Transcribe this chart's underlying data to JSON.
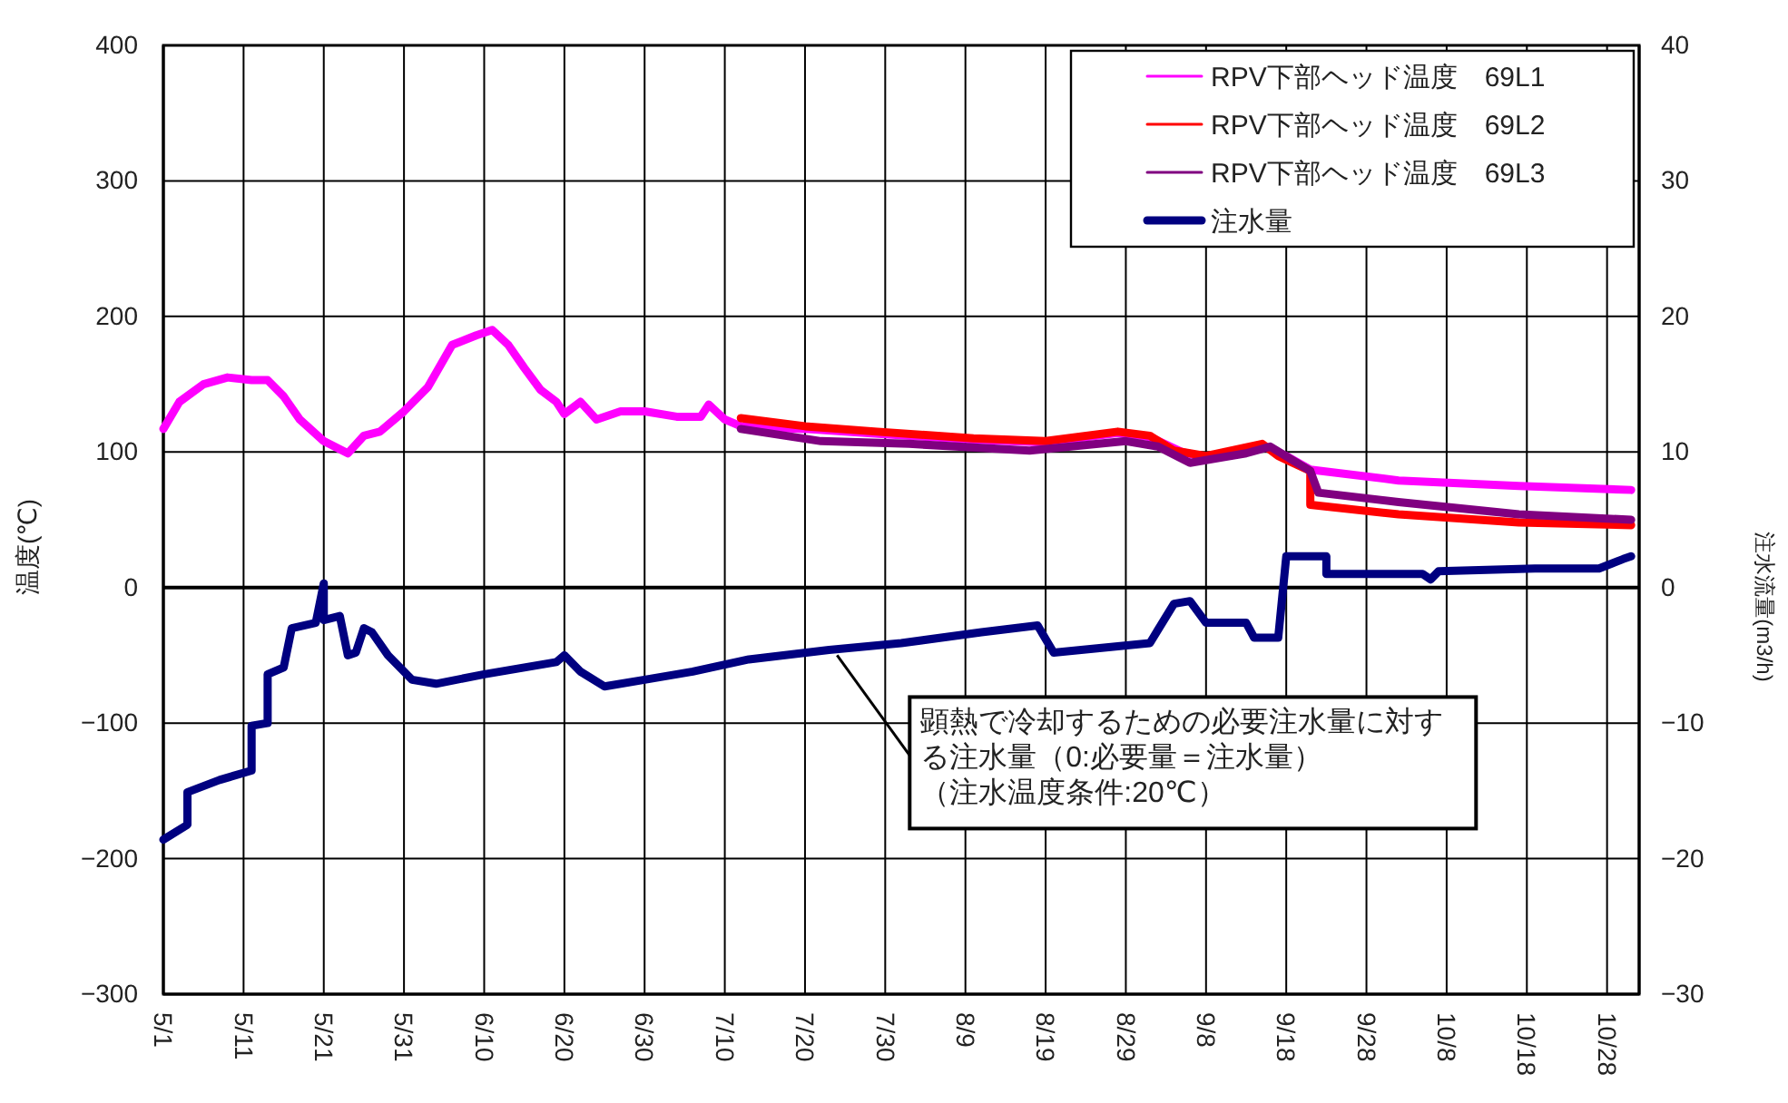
{
  "chart_data": {
    "type": "line",
    "ylabel": "温度(℃)",
    "y2label": "注水流量(m3/h)",
    "xlim": [
      "--05-01",
      "--11-01"
    ],
    "xticks": [
      {
        "value": "--05-01",
        "label": "5/1"
      },
      {
        "value": "--05-11",
        "label": "5/11"
      },
      {
        "value": "--05-21",
        "label": "5/21"
      },
      {
        "value": "--05-31",
        "label": "5/31"
      },
      {
        "value": "--06-10",
        "label": "6/10"
      },
      {
        "value": "--06-20",
        "label": "6/20"
      },
      {
        "value": "--06-30",
        "label": "6/30"
      },
      {
        "value": "--07-10",
        "label": "7/10"
      },
      {
        "value": "--07-20",
        "label": "7/20"
      },
      {
        "value": "--07-30",
        "label": "7/30"
      },
      {
        "value": "--08-09",
        "label": "8/9"
      },
      {
        "value": "--08-19",
        "label": "8/19"
      },
      {
        "value": "--08-29",
        "label": "8/29"
      },
      {
        "value": "--09-08",
        "label": "9/8"
      },
      {
        "value": "--09-18",
        "label": "9/18"
      },
      {
        "value": "--09-28",
        "label": "9/28"
      },
      {
        "value": "--10-08",
        "label": "10/8"
      },
      {
        "value": "--10-18",
        "label": "10/18"
      },
      {
        "value": "--10-28",
        "label": "10/28"
      }
    ],
    "ylim": [
      -300,
      400
    ],
    "yticks": [
      {
        "value": -300,
        "label": "−300"
      },
      {
        "value": -200,
        "label": "−200"
      },
      {
        "value": -100,
        "label": "−100"
      },
      0,
      100,
      200,
      300,
      400
    ],
    "y2lim": [
      -30,
      40
    ],
    "y2ticks": [
      {
        "value": -30,
        "label": "−30"
      },
      {
        "value": -20,
        "label": "−20"
      },
      {
        "value": -10,
        "label": "−10"
      },
      0,
      10,
      20,
      30,
      40
    ],
    "grid": true,
    "legend": "top right",
    "ref_lines": [
      {
        "axis": "y",
        "value": 0
      }
    ],
    "annotations": [
      {
        "text": "顕熱で冷却するための必要注水量に対する注水量（0:必要量＝注水量）",
        "x": "--07-24",
        "y": -50
      },
      "（注水温度条件:20℃）"
    ],
    "series": [
      {
        "name": "RPV下部ヘッド温度　69L1",
        "color": "#ff00ff",
        "x": [
          "--05-01",
          "--05-03",
          "--05-06",
          "--05-09",
          "--05-12",
          "--05-14",
          "--05-16",
          "--05-18",
          "--05-21",
          "--05-24",
          "--05-26",
          "--05-28",
          "--05-31",
          "--06-03",
          "--06-06",
          "--06-09",
          "--06-11",
          "--06-13",
          "--06-15",
          "--06-17",
          "--06-19",
          "--06-20",
          "--06-22",
          "--06-24",
          "--06-27",
          "--06-30",
          "--07-04",
          "--07-07",
          "--07-08",
          "--07-10",
          "--07-12",
          "--07-20",
          "--07-30",
          "--08-10",
          "--08-19",
          "--08-28",
          "--09-01",
          "--09-05",
          "--09-08",
          "--09-15",
          "--09-18",
          "--09-21",
          "--10-02",
          "--10-17",
          "--10-31"
        ],
        "values": [
          117,
          137,
          150,
          155,
          153,
          153,
          141,
          124,
          108,
          99,
          112,
          115,
          130,
          148,
          179,
          186,
          190,
          179,
          162,
          146,
          137,
          128,
          137,
          124,
          130,
          130,
          126,
          126,
          135,
          124,
          119,
          117,
          113,
          109,
          107,
          114,
          111,
          100,
          96,
          105,
          97,
          87,
          79,
          75,
          72
        ]
      },
      {
        "name": "RPV下部ヘッド温度　69L2",
        "color": "#ff0000",
        "x": [
          "--07-12",
          "--07-20",
          "--07-29",
          "--08-10",
          "--08-19",
          "--08-28",
          "--09-01",
          "--09-04",
          "--09-08",
          "--09-15",
          "--09-17",
          "--09-21",
          "--09-21",
          "--10-02",
          "--10-17",
          "--10-31"
        ],
        "values": [
          125,
          119,
          115,
          110,
          108,
          115,
          112,
          101,
          97,
          106,
          97,
          86,
          61,
          54,
          48,
          46
        ]
      },
      {
        "name": "RPV下部ヘッド温度　69L3",
        "color": "#800080",
        "x": [
          "--07-12",
          "--07-22",
          "--08-02",
          "--08-17",
          "--08-29",
          "--09-02",
          "--09-06",
          "--09-13",
          "--09-16",
          "--09-21",
          "--09-22",
          "--10-02",
          "--10-17",
          "--10-31"
        ],
        "values": [
          117,
          108,
          106,
          101,
          108,
          104,
          92,
          99,
          104,
          86,
          70,
          63,
          54,
          50
        ]
      },
      {
        "name": "注水量",
        "color": "#000080",
        "axis": "y2",
        "x": [
          "--05-01",
          "--05-04",
          "--05-04",
          "--05-08",
          "--05-12",
          "--05-12",
          "--05-14",
          "--05-14",
          "--05-16",
          "--05-17",
          "--05-20",
          "--05-21",
          "--05-21",
          "--05-23",
          "--05-24",
          "--05-25",
          "--05-26",
          "--05-27",
          "--05-29",
          "--06-01",
          "--06-04",
          "--06-10",
          "--06-19",
          "--06-20",
          "--06-22",
          "--06-25",
          "--06-30",
          "--07-06",
          "--07-13",
          "--07-23",
          "--08-01",
          "--08-11",
          "--08-18",
          "--08-20",
          "--09-01",
          "--09-04",
          "--09-06",
          "--09-08",
          "--09-13",
          "--09-14",
          "--09-17",
          "--09-18",
          "--09-23",
          "--09-23",
          "--10-05",
          "--10-06",
          "--10-07",
          "--10-19",
          "--10-27",
          "--10-30",
          "--10-31"
        ],
        "values": [
          -18.6,
          -17.5,
          -15.1,
          -14.2,
          -13.5,
          -10.2,
          -10.0,
          -6.4,
          -5.9,
          -3.0,
          -2.6,
          0.3,
          -2.4,
          -2.1,
          -5.0,
          -4.8,
          -3.0,
          -3.3,
          -5.0,
          -6.8,
          -7.1,
          -6.4,
          -5.5,
          -5.0,
          -6.2,
          -7.3,
          -6.8,
          -6.2,
          -5.3,
          -4.6,
          -4.1,
          -3.3,
          -2.8,
          -4.8,
          -4.1,
          -1.2,
          -1.0,
          -2.6,
          -2.6,
          -3.7,
          -3.7,
          2.3,
          2.3,
          1.0,
          1.0,
          0.6,
          1.2,
          1.4,
          1.4,
          2.1,
          2.3
        ]
      }
    ]
  }
}
